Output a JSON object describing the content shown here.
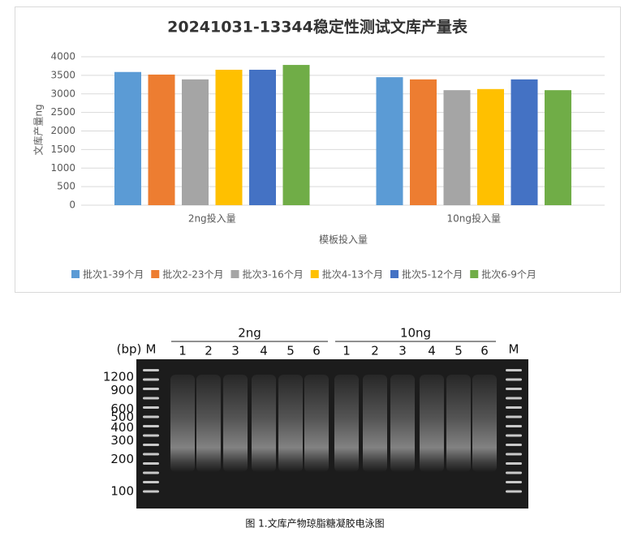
{
  "chart_data": {
    "type": "bar",
    "title": "20241031-13344稳定性测试文库产量表",
    "y_label": "文库产量ng",
    "x_label": "模板投入量",
    "categories": [
      "2ng投入量",
      "10ng投入量"
    ],
    "series": [
      {
        "name": "批次1-39个月",
        "color": "#5b9bd5",
        "values": [
          3590,
          3450
        ]
      },
      {
        "name": "批次2-23个月",
        "color": "#ed7d31",
        "values": [
          3520,
          3390
        ]
      },
      {
        "name": "批次3-16个月",
        "color": "#a5a5a5",
        "values": [
          3390,
          3100
        ]
      },
      {
        "name": "批次4-13个月",
        "color": "#ffc000",
        "values": [
          3650,
          3130
        ]
      },
      {
        "name": "批次5-12个月",
        "color": "#4472c4",
        "values": [
          3650,
          3390
        ]
      },
      {
        "name": "批次6-9个月",
        "color": "#70ad47",
        "values": [
          3780,
          3100
        ]
      }
    ],
    "ylim": [
      0,
      4000
    ],
    "yticks": [
      0,
      500,
      1000,
      1500,
      2000,
      2500,
      3000,
      3500,
      4000
    ],
    "grid": true,
    "legend": "bottom"
  },
  "gel": {
    "unit": "(bp)",
    "marker": "M",
    "groups": [
      {
        "label": "2ng",
        "lanes": [
          "1",
          "2",
          "3",
          "4",
          "5",
          "6"
        ]
      },
      {
        "label": "10ng",
        "lanes": [
          "1",
          "2",
          "3",
          "4",
          "5",
          "6"
        ]
      }
    ],
    "ladder": [
      1200,
      900,
      600,
      500,
      400,
      300,
      200,
      100
    ]
  },
  "caption": "图 1.文库产物琼脂糖凝胶电泳图"
}
